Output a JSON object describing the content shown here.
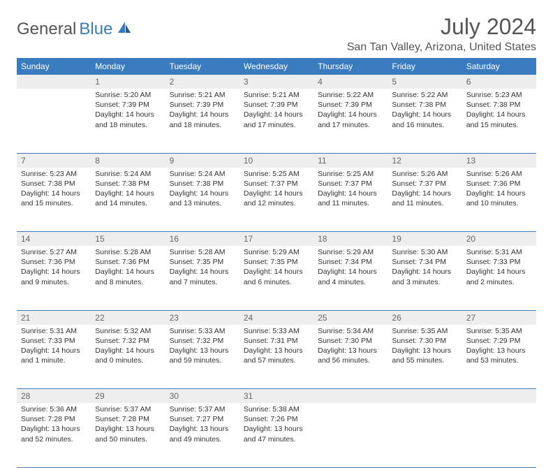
{
  "brand": {
    "part1": "General",
    "part2": "Blue"
  },
  "title": "July 2024",
  "location": "San Tan Valley, Arizona, United States",
  "colors": {
    "header_bg": "#3a7bbf",
    "header_text": "#ffffff",
    "daynum_bg": "#eeeeee",
    "border": "#3a7bbf",
    "text": "#333333"
  },
  "day_headers": [
    "Sunday",
    "Monday",
    "Tuesday",
    "Wednesday",
    "Thursday",
    "Friday",
    "Saturday"
  ],
  "weeks": [
    {
      "nums": [
        "",
        "1",
        "2",
        "3",
        "4",
        "5",
        "6"
      ],
      "cells": [
        null,
        {
          "sunrise": "Sunrise: 5:20 AM",
          "sunset": "Sunset: 7:39 PM",
          "day1": "Daylight: 14 hours",
          "day2": "and 18 minutes."
        },
        {
          "sunrise": "Sunrise: 5:21 AM",
          "sunset": "Sunset: 7:39 PM",
          "day1": "Daylight: 14 hours",
          "day2": "and 18 minutes."
        },
        {
          "sunrise": "Sunrise: 5:21 AM",
          "sunset": "Sunset: 7:39 PM",
          "day1": "Daylight: 14 hours",
          "day2": "and 17 minutes."
        },
        {
          "sunrise": "Sunrise: 5:22 AM",
          "sunset": "Sunset: 7:39 PM",
          "day1": "Daylight: 14 hours",
          "day2": "and 17 minutes."
        },
        {
          "sunrise": "Sunrise: 5:22 AM",
          "sunset": "Sunset: 7:38 PM",
          "day1": "Daylight: 14 hours",
          "day2": "and 16 minutes."
        },
        {
          "sunrise": "Sunrise: 5:23 AM",
          "sunset": "Sunset: 7:38 PM",
          "day1": "Daylight: 14 hours",
          "day2": "and 15 minutes."
        }
      ]
    },
    {
      "nums": [
        "7",
        "8",
        "9",
        "10",
        "11",
        "12",
        "13"
      ],
      "cells": [
        {
          "sunrise": "Sunrise: 5:23 AM",
          "sunset": "Sunset: 7:38 PM",
          "day1": "Daylight: 14 hours",
          "day2": "and 15 minutes."
        },
        {
          "sunrise": "Sunrise: 5:24 AM",
          "sunset": "Sunset: 7:38 PM",
          "day1": "Daylight: 14 hours",
          "day2": "and 14 minutes."
        },
        {
          "sunrise": "Sunrise: 5:24 AM",
          "sunset": "Sunset: 7:38 PM",
          "day1": "Daylight: 14 hours",
          "day2": "and 13 minutes."
        },
        {
          "sunrise": "Sunrise: 5:25 AM",
          "sunset": "Sunset: 7:37 PM",
          "day1": "Daylight: 14 hours",
          "day2": "and 12 minutes."
        },
        {
          "sunrise": "Sunrise: 5:25 AM",
          "sunset": "Sunset: 7:37 PM",
          "day1": "Daylight: 14 hours",
          "day2": "and 11 minutes."
        },
        {
          "sunrise": "Sunrise: 5:26 AM",
          "sunset": "Sunset: 7:37 PM",
          "day1": "Daylight: 14 hours",
          "day2": "and 11 minutes."
        },
        {
          "sunrise": "Sunrise: 5:26 AM",
          "sunset": "Sunset: 7:36 PM",
          "day1": "Daylight: 14 hours",
          "day2": "and 10 minutes."
        }
      ]
    },
    {
      "nums": [
        "14",
        "15",
        "16",
        "17",
        "18",
        "19",
        "20"
      ],
      "cells": [
        {
          "sunrise": "Sunrise: 5:27 AM",
          "sunset": "Sunset: 7:36 PM",
          "day1": "Daylight: 14 hours",
          "day2": "and 9 minutes."
        },
        {
          "sunrise": "Sunrise: 5:28 AM",
          "sunset": "Sunset: 7:36 PM",
          "day1": "Daylight: 14 hours",
          "day2": "and 8 minutes."
        },
        {
          "sunrise": "Sunrise: 5:28 AM",
          "sunset": "Sunset: 7:35 PM",
          "day1": "Daylight: 14 hours",
          "day2": "and 7 minutes."
        },
        {
          "sunrise": "Sunrise: 5:29 AM",
          "sunset": "Sunset: 7:35 PM",
          "day1": "Daylight: 14 hours",
          "day2": "and 6 minutes."
        },
        {
          "sunrise": "Sunrise: 5:29 AM",
          "sunset": "Sunset: 7:34 PM",
          "day1": "Daylight: 14 hours",
          "day2": "and 4 minutes."
        },
        {
          "sunrise": "Sunrise: 5:30 AM",
          "sunset": "Sunset: 7:34 PM",
          "day1": "Daylight: 14 hours",
          "day2": "and 3 minutes."
        },
        {
          "sunrise": "Sunrise: 5:31 AM",
          "sunset": "Sunset: 7:33 PM",
          "day1": "Daylight: 14 hours",
          "day2": "and 2 minutes."
        }
      ]
    },
    {
      "nums": [
        "21",
        "22",
        "23",
        "24",
        "25",
        "26",
        "27"
      ],
      "cells": [
        {
          "sunrise": "Sunrise: 5:31 AM",
          "sunset": "Sunset: 7:33 PM",
          "day1": "Daylight: 14 hours",
          "day2": "and 1 minute."
        },
        {
          "sunrise": "Sunrise: 5:32 AM",
          "sunset": "Sunset: 7:32 PM",
          "day1": "Daylight: 14 hours",
          "day2": "and 0 minutes."
        },
        {
          "sunrise": "Sunrise: 5:33 AM",
          "sunset": "Sunset: 7:32 PM",
          "day1": "Daylight: 13 hours",
          "day2": "and 59 minutes."
        },
        {
          "sunrise": "Sunrise: 5:33 AM",
          "sunset": "Sunset: 7:31 PM",
          "day1": "Daylight: 13 hours",
          "day2": "and 57 minutes."
        },
        {
          "sunrise": "Sunrise: 5:34 AM",
          "sunset": "Sunset: 7:30 PM",
          "day1": "Daylight: 13 hours",
          "day2": "and 56 minutes."
        },
        {
          "sunrise": "Sunrise: 5:35 AM",
          "sunset": "Sunset: 7:30 PM",
          "day1": "Daylight: 13 hours",
          "day2": "and 55 minutes."
        },
        {
          "sunrise": "Sunrise: 5:35 AM",
          "sunset": "Sunset: 7:29 PM",
          "day1": "Daylight: 13 hours",
          "day2": "and 53 minutes."
        }
      ]
    },
    {
      "nums": [
        "28",
        "29",
        "30",
        "31",
        "",
        "",
        ""
      ],
      "cells": [
        {
          "sunrise": "Sunrise: 5:36 AM",
          "sunset": "Sunset: 7:28 PM",
          "day1": "Daylight: 13 hours",
          "day2": "and 52 minutes."
        },
        {
          "sunrise": "Sunrise: 5:37 AM",
          "sunset": "Sunset: 7:28 PM",
          "day1": "Daylight: 13 hours",
          "day2": "and 50 minutes."
        },
        {
          "sunrise": "Sunrise: 5:37 AM",
          "sunset": "Sunset: 7:27 PM",
          "day1": "Daylight: 13 hours",
          "day2": "and 49 minutes."
        },
        {
          "sunrise": "Sunrise: 5:38 AM",
          "sunset": "Sunset: 7:26 PM",
          "day1": "Daylight: 13 hours",
          "day2": "and 47 minutes."
        },
        null,
        null,
        null
      ]
    }
  ]
}
